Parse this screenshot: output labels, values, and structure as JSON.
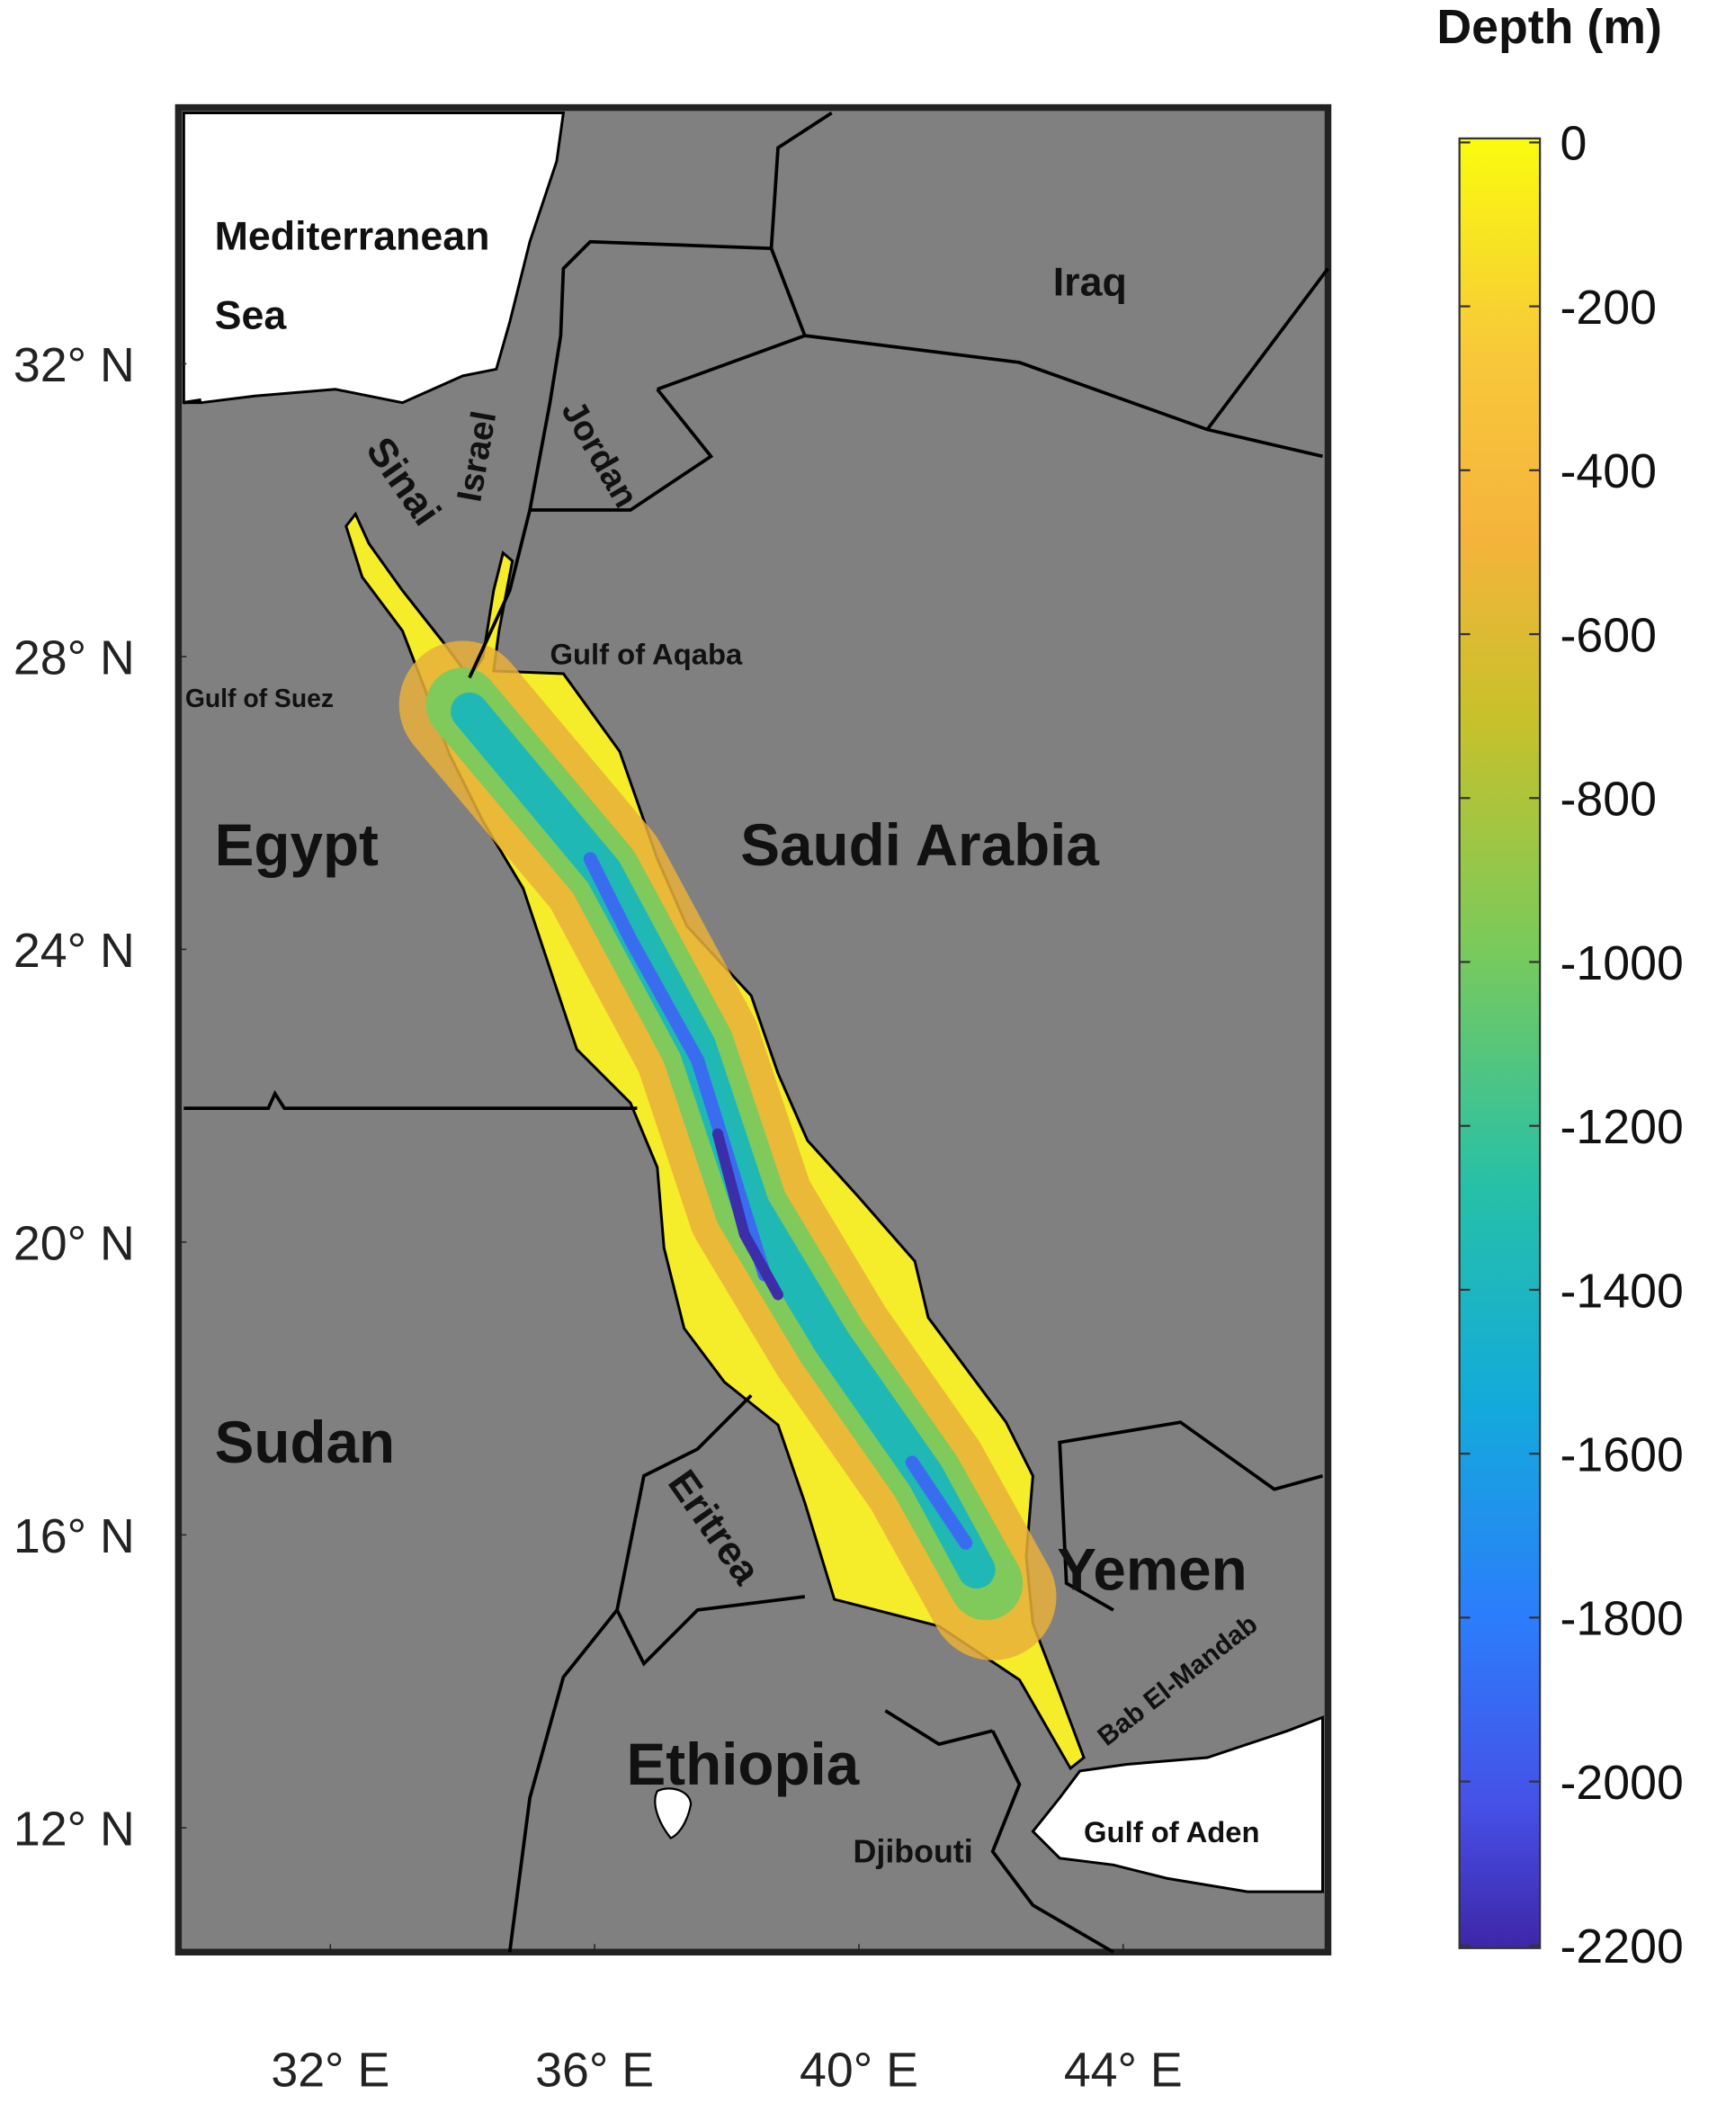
{
  "colorbar": {
    "title": "Depth (m)",
    "range": [
      0,
      -2200
    ],
    "ticks": [
      0,
      -200,
      -400,
      -600,
      -800,
      -1000,
      -1200,
      -1400,
      -1600,
      -1800,
      -2000,
      -2200
    ]
  },
  "axes": {
    "lonlim": [
      29.7,
      47.1
    ],
    "latlim": [
      10.3,
      35.5
    ],
    "lat_ticks": [
      {
        "value": 32,
        "label": "32° N"
      },
      {
        "value": 28,
        "label": "28° N"
      },
      {
        "value": 24,
        "label": "24° N"
      },
      {
        "value": 20,
        "label": "20° N"
      },
      {
        "value": 16,
        "label": "16° N"
      },
      {
        "value": 12,
        "label": "12° N"
      }
    ],
    "lon_ticks": [
      {
        "value": 32,
        "label": "32° E"
      },
      {
        "value": 36,
        "label": "36° E"
      },
      {
        "value": 40,
        "label": "40° E"
      },
      {
        "value": 44,
        "label": "44° E"
      }
    ]
  },
  "labels": {
    "mediterranean": [
      "Mediterranean",
      "Sea"
    ],
    "iraq": "Iraq",
    "sinai": "Sinai",
    "israel": "Israel",
    "jordan": "Jordan",
    "gulf_of_aqaba": "Gulf of Aqaba",
    "gulf_of_suez": "Gulf of Suez",
    "egypt": "Egypt",
    "saudi_arabia": "Saudi Arabia",
    "sudan": "Sudan",
    "eritrea": "Eritrea",
    "yemen": "Yemen",
    "bab_el_mandab": "Bab El-Mandab",
    "ethiopia": "Ethiopia",
    "djibouti": "Djibouti",
    "gulf_of_aden": "Gulf of Aden"
  }
}
